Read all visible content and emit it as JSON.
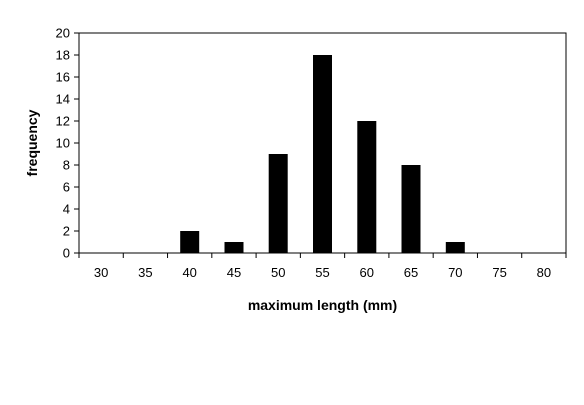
{
  "chart_data": {
    "type": "bar",
    "categories": [
      "30",
      "35",
      "40",
      "45",
      "50",
      "55",
      "60",
      "65",
      "70",
      "75",
      "80"
    ],
    "values": [
      0,
      0,
      2,
      1,
      9,
      18,
      12,
      8,
      1,
      0,
      0
    ],
    "xlabel": "maximum length (mm)",
    "ylabel": "frequency",
    "ylim": [
      0,
      20
    ],
    "yticks": [
      0,
      2,
      4,
      6,
      8,
      10,
      12,
      14,
      16,
      18,
      20
    ],
    "grid": false,
    "legend": "none",
    "bar_color": "#000000"
  }
}
